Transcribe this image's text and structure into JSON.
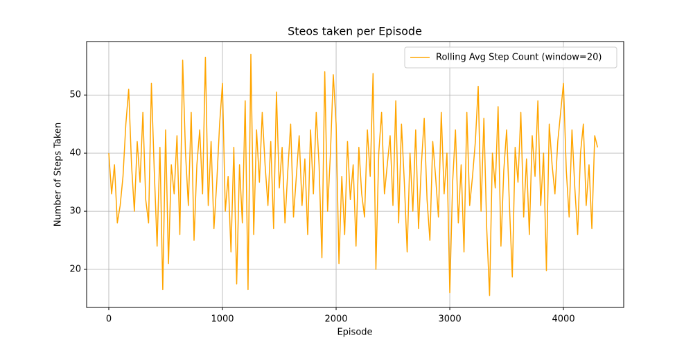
{
  "chart_data": {
    "type": "line",
    "title": "Steos taken per Episode",
    "xlabel": "Episode",
    "ylabel": "Number of Steps Taken",
    "x": [
      0,
      25,
      50,
      75,
      100,
      125,
      150,
      175,
      200,
      225,
      250,
      275,
      300,
      325,
      350,
      375,
      400,
      425,
      450,
      475,
      500,
      525,
      550,
      575,
      600,
      625,
      650,
      675,
      700,
      725,
      750,
      775,
      800,
      825,
      850,
      875,
      900,
      925,
      950,
      975,
      1000,
      1025,
      1050,
      1075,
      1100,
      1125,
      1150,
      1175,
      1200,
      1225,
      1250,
      1275,
      1300,
      1325,
      1350,
      1375,
      1400,
      1425,
      1450,
      1475,
      1500,
      1525,
      1550,
      1575,
      1600,
      1625,
      1650,
      1675,
      1700,
      1725,
      1750,
      1775,
      1800,
      1825,
      1850,
      1875,
      1900,
      1925,
      1950,
      1975,
      2000,
      2025,
      2050,
      2075,
      2100,
      2125,
      2150,
      2175,
      2200,
      2225,
      2250,
      2275,
      2300,
      2325,
      2350,
      2375,
      2400,
      2425,
      2450,
      2475,
      2500,
      2525,
      2550,
      2575,
      2600,
      2625,
      2650,
      2675,
      2700,
      2725,
      2750,
      2775,
      2800,
      2825,
      2850,
      2875,
      2900,
      2925,
      2950,
      2975,
      3000,
      3025,
      3050,
      3075,
      3100,
      3125,
      3150,
      3175,
      3200,
      3225,
      3250,
      3275,
      3300,
      3325,
      3350,
      3375,
      3400,
      3425,
      3450,
      3475,
      3500,
      3525,
      3550,
      3575,
      3600,
      3625,
      3650,
      3675,
      3700,
      3725,
      3750,
      3775,
      3800,
      3825,
      3850,
      3875,
      3900,
      3925,
      3950,
      3975,
      4000,
      4025,
      4050,
      4075,
      4100,
      4125,
      4150,
      4175,
      4200,
      4225,
      4250,
      4275,
      4300
    ],
    "series": [
      {
        "name": "Rolling Avg Step Count (window=20)",
        "color": "#ffa500",
        "values": [
          40,
          33,
          38,
          28,
          31,
          36,
          45,
          51,
          38,
          30,
          42,
          35,
          47,
          32,
          28,
          52,
          37,
          24,
          41,
          16.5,
          44,
          21,
          38,
          33,
          43,
          26,
          56,
          40,
          31,
          47,
          25,
          38,
          44,
          33,
          56.5,
          31,
          42,
          27,
          35,
          45,
          52,
          30,
          36,
          23,
          41,
          17.5,
          38,
          28,
          49,
          16.5,
          57,
          26,
          44,
          35,
          47,
          38,
          31,
          42,
          27,
          50.5,
          34,
          41,
          28,
          37,
          45,
          29,
          36,
          43,
          31,
          39,
          26,
          44,
          33,
          47,
          38,
          22,
          54,
          30,
          40,
          53.5,
          45,
          21,
          36,
          26,
          42,
          32,
          38,
          24,
          41,
          33,
          29,
          44,
          36,
          53.7,
          20,
          40,
          47,
          33,
          38,
          43,
          31,
          49,
          28,
          45,
          35,
          23,
          40,
          30,
          44,
          27,
          38,
          46,
          32,
          25,
          42,
          36,
          29,
          47,
          33,
          40,
          16,
          35,
          44,
          28,
          38,
          23,
          47,
          31,
          36,
          42,
          51.5,
          30,
          46,
          27,
          15.5,
          40,
          34,
          48,
          24,
          37,
          44,
          31,
          18.7,
          41,
          35,
          47,
          29,
          39,
          26,
          43,
          36,
          49,
          31,
          40,
          19.8,
          45,
          38,
          33,
          42,
          47,
          52,
          37,
          29,
          44,
          34,
          26,
          40,
          45,
          31,
          38,
          27,
          43,
          41
        ]
      }
    ],
    "xlim": [
      -195,
      4530
    ],
    "ylim": [
      13.45,
      59.2
    ],
    "xticks": [
      0,
      1000,
      2000,
      3000,
      4000
    ],
    "yticks": [
      20,
      30,
      40,
      50
    ],
    "grid": true,
    "legend": "upper right"
  }
}
